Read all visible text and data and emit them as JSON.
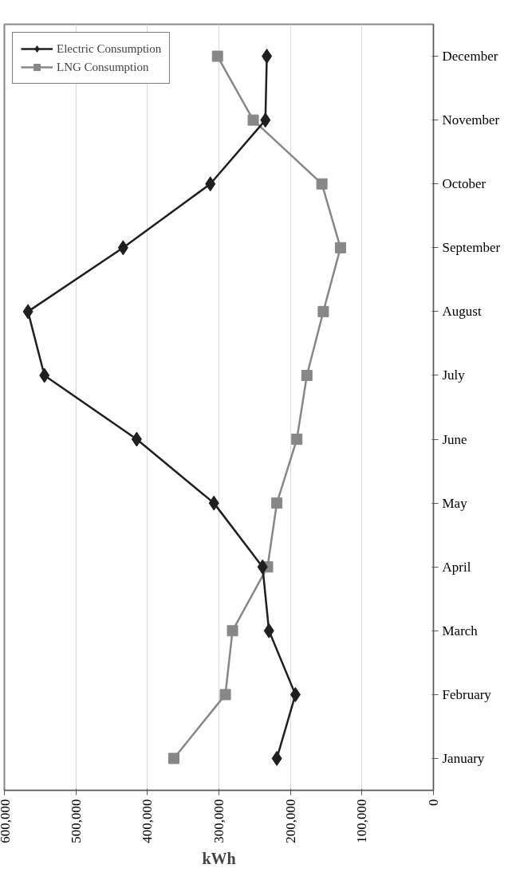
{
  "chart_data": {
    "type": "line",
    "orientation": "horizontal",
    "xlabel": "kWh",
    "categories": [
      "December",
      "November",
      "October",
      "September",
      "August",
      "July",
      "June",
      "May",
      "April",
      "March",
      "February",
      "January"
    ],
    "series": [
      {
        "name": "Electric Consumption",
        "color": "#1f1f1f",
        "marker": "diamond",
        "values": [
          233000,
          235000,
          312000,
          434000,
          567000,
          544000,
          415000,
          307000,
          239000,
          230000,
          193000,
          219000
        ]
      },
      {
        "name": "LNG Consumption",
        "color": "#878787",
        "marker": "square",
        "values": [
          302000,
          252000,
          156000,
          130000,
          154000,
          177000,
          191000,
          219000,
          232000,
          281000,
          291000,
          363000
        ]
      }
    ],
    "xlim": [
      600000,
      0
    ],
    "xticks": [
      {
        "value": 600000,
        "label": "600,000"
      },
      {
        "value": 500000,
        "label": "500,000"
      },
      {
        "value": 400000,
        "label": "400,000"
      },
      {
        "value": 300000,
        "label": "300,000"
      },
      {
        "value": 200000,
        "label": "200,000"
      },
      {
        "value": 100000,
        "label": "100,000"
      },
      {
        "value": 0,
        "label": "0"
      }
    ],
    "grid": "x",
    "legend": "top left"
  }
}
